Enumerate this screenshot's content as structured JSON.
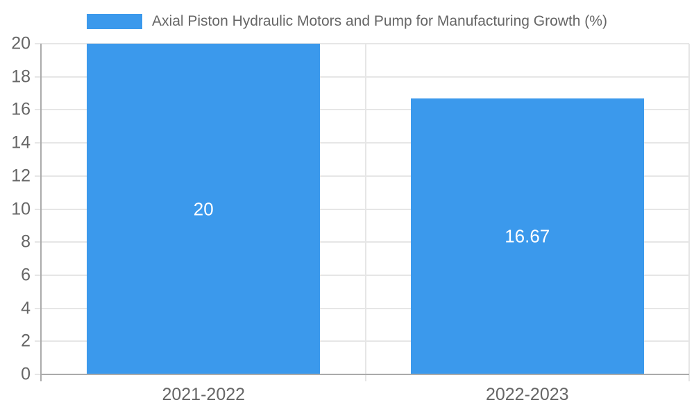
{
  "chart_data": {
    "type": "bar",
    "title": "",
    "categories": [
      "2021-2022",
      "2022-2023"
    ],
    "series": [
      {
        "name": "Axial Piston Hydraulic Motors and Pump for Manufacturing Growth (%)",
        "values": [
          20,
          16.67
        ],
        "data_labels": [
          "20",
          "16.67"
        ],
        "color": "#3b99ec"
      }
    ],
    "ylim": [
      0,
      20
    ],
    "y_tick_step": 2,
    "y_tick_labels": [
      "0",
      "2",
      "4",
      "6",
      "8",
      "10",
      "12",
      "14",
      "16",
      "18",
      "20"
    ],
    "grid": true,
    "legend_position": "top",
    "bar_fraction_of_category": 0.72,
    "colors": {
      "bar": "#3b99ec",
      "grid": "#e6e6e6",
      "axis_border": "#ababab",
      "tick_label": "#666666",
      "legend_label": "#666666",
      "data_label": "#ffffff",
      "background": "#ffffff"
    }
  }
}
